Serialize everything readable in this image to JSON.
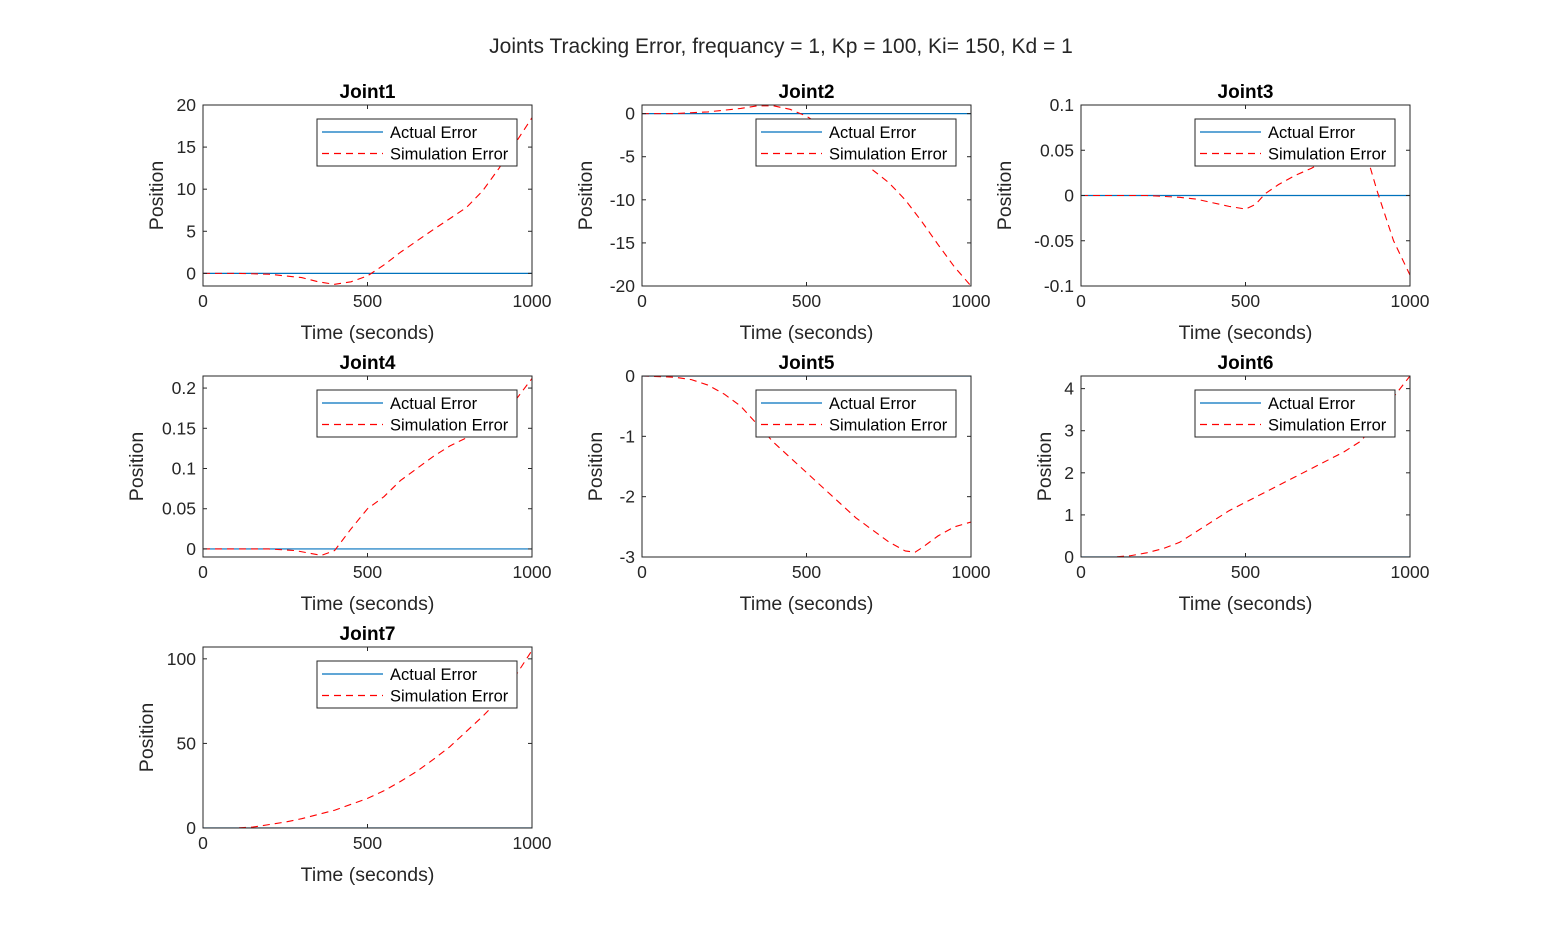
{
  "figure_title": "Joints Tracking Error, frequancy = 1, Kp = 100, Ki= 150, Kd = 1",
  "colors": {
    "actual": "#0072BD",
    "simulation": "#FF0000",
    "axis": "#262626"
  },
  "chart_data": [
    {
      "type": "line",
      "title": "Joint1",
      "xlabel": "Time (seconds)",
      "ylabel": "Position",
      "xlim": [
        0,
        1000
      ],
      "ylim": [
        -1.5,
        20
      ],
      "xticks": [
        0,
        500,
        1000
      ],
      "yticks": [
        0,
        5,
        10,
        15,
        20
      ],
      "xtick_labels": [
        "0",
        "500",
        "1000"
      ],
      "ytick_labels": [
        "0",
        "5",
        "10",
        "15",
        "20"
      ],
      "legend": "top-right",
      "grid": false,
      "series": [
        {
          "name": "Actual Error",
          "style": "solid",
          "x": [
            0,
            1000
          ],
          "y": [
            0,
            0
          ]
        },
        {
          "name": "Simulation Error",
          "style": "dashed",
          "x": [
            0,
            100,
            200,
            300,
            350,
            400,
            450,
            500,
            550,
            600,
            700,
            800,
            850,
            900,
            950,
            1000
          ],
          "y": [
            0,
            0,
            -0.1,
            -0.5,
            -1.0,
            -1.3,
            -1.0,
            -0.3,
            1.0,
            2.5,
            5.2,
            7.8,
            9.8,
            12.5,
            15.5,
            18.5
          ]
        }
      ]
    },
    {
      "type": "line",
      "title": "Joint2",
      "xlabel": "Time (seconds)",
      "ylabel": "Position",
      "xlim": [
        0,
        1000
      ],
      "ylim": [
        -20,
        1
      ],
      "xticks": [
        0,
        500,
        1000
      ],
      "yticks": [
        -20,
        -15,
        -10,
        -5,
        0
      ],
      "xtick_labels": [
        "0",
        "500",
        "1000"
      ],
      "ytick_labels": [
        "-20",
        "-15",
        "-10",
        "-5",
        "0"
      ],
      "legend": "top-right",
      "grid": false,
      "series": [
        {
          "name": "Actual Error",
          "style": "solid",
          "x": [
            0,
            1000
          ],
          "y": [
            0,
            0
          ]
        },
        {
          "name": "Simulation Error",
          "style": "dashed",
          "x": [
            0,
            100,
            200,
            300,
            350,
            400,
            450,
            500,
            550,
            600,
            650,
            700,
            750,
            800,
            850,
            900,
            950,
            1000
          ],
          "y": [
            0,
            0,
            0.2,
            0.6,
            0.9,
            0.9,
            0.5,
            -0.3,
            -1.5,
            -3.0,
            -4.5,
            -6.5,
            -8.0,
            -10.0,
            -12.5,
            -15.2,
            -17.8,
            -20.0
          ]
        }
      ]
    },
    {
      "type": "line",
      "title": "Joint3",
      "xlabel": "Time (seconds)",
      "ylabel": "Position",
      "xlim": [
        0,
        1000
      ],
      "ylim": [
        -0.1,
        0.1
      ],
      "xticks": [
        0,
        500,
        1000
      ],
      "yticks": [
        -0.1,
        -0.05,
        0,
        0.05,
        0.1
      ],
      "xtick_labels": [
        "0",
        "500",
        "1000"
      ],
      "ytick_labels": [
        "-0.1",
        "-0.05",
        "0",
        "0.05",
        "0.1"
      ],
      "legend": "top-right",
      "grid": false,
      "series": [
        {
          "name": "Actual Error",
          "style": "solid",
          "x": [
            0,
            1000
          ],
          "y": [
            0,
            0
          ]
        },
        {
          "name": "Simulation Error",
          "style": "dashed",
          "x": [
            0,
            100,
            200,
            300,
            350,
            400,
            450,
            500,
            530,
            560,
            600,
            650,
            700,
            750,
            800,
            850,
            880,
            900,
            950,
            1000
          ],
          "y": [
            0,
            0,
            0,
            -0.002,
            -0.004,
            -0.008,
            -0.012,
            -0.015,
            -0.01,
            0.002,
            0.012,
            0.022,
            0.03,
            0.04,
            0.046,
            0.044,
            0.03,
            0.005,
            -0.05,
            -0.088
          ]
        }
      ]
    },
    {
      "type": "line",
      "title": "Joint4",
      "xlabel": "Time (seconds)",
      "ylabel": "Position",
      "xlim": [
        0,
        1000
      ],
      "ylim": [
        -0.01,
        0.215
      ],
      "xticks": [
        0,
        500,
        1000
      ],
      "yticks": [
        0,
        0.05,
        0.1,
        0.15,
        0.2
      ],
      "xtick_labels": [
        "0",
        "500",
        "1000"
      ],
      "ytick_labels": [
        "0",
        "0.05",
        "0.1",
        "0.15",
        "0.2"
      ],
      "legend": "top-right",
      "grid": false,
      "series": [
        {
          "name": "Actual Error",
          "style": "solid",
          "x": [
            0,
            1000
          ],
          "y": [
            0,
            0
          ]
        },
        {
          "name": "Simulation Error",
          "style": "dashed",
          "x": [
            0,
            100,
            200,
            280,
            320,
            360,
            400,
            450,
            500,
            550,
            600,
            650,
            700,
            750,
            800,
            850,
            900,
            950,
            1000
          ],
          "y": [
            0,
            0,
            0,
            -0.002,
            -0.005,
            -0.008,
            -0.002,
            0.025,
            0.05,
            0.065,
            0.085,
            0.1,
            0.115,
            0.128,
            0.138,
            0.148,
            0.16,
            0.185,
            0.212
          ]
        }
      ]
    },
    {
      "type": "line",
      "title": "Joint5",
      "xlabel": "Time (seconds)",
      "ylabel": "Position",
      "xlim": [
        0,
        1000
      ],
      "ylim": [
        -3,
        0
      ],
      "xticks": [
        0,
        500,
        1000
      ],
      "yticks": [
        -3,
        -2,
        -1,
        0
      ],
      "xtick_labels": [
        "0",
        "500",
        "1000"
      ],
      "ytick_labels": [
        "-3",
        "-2",
        "-1",
        "0"
      ],
      "legend": "top-right",
      "grid": false,
      "series": [
        {
          "name": "Actual Error",
          "style": "solid",
          "x": [
            0,
            1000
          ],
          "y": [
            0,
            0
          ]
        },
        {
          "name": "Simulation Error",
          "style": "dashed",
          "x": [
            0,
            100,
            150,
            200,
            250,
            300,
            350,
            400,
            450,
            500,
            550,
            600,
            650,
            700,
            750,
            800,
            830,
            850,
            900,
            950,
            1000
          ],
          "y": [
            0,
            -0.02,
            -0.06,
            -0.15,
            -0.3,
            -0.5,
            -0.8,
            -1.1,
            -1.35,
            -1.6,
            -1.85,
            -2.1,
            -2.35,
            -2.55,
            -2.75,
            -2.9,
            -2.92,
            -2.85,
            -2.65,
            -2.5,
            -2.42
          ]
        }
      ]
    },
    {
      "type": "line",
      "title": "Joint6",
      "xlabel": "Time (seconds)",
      "ylabel": "Position",
      "xlim": [
        0,
        1000
      ],
      "ylim": [
        0,
        4.3
      ],
      "xticks": [
        0,
        500,
        1000
      ],
      "yticks": [
        0,
        1,
        2,
        3,
        4
      ],
      "xtick_labels": [
        "0",
        "500",
        "1000"
      ],
      "ytick_labels": [
        "0",
        "1",
        "2",
        "3",
        "4"
      ],
      "legend": "top-right",
      "grid": false,
      "series": [
        {
          "name": "Actual Error",
          "style": "solid",
          "x": [
            0,
            1000
          ],
          "y": [
            0,
            0
          ]
        },
        {
          "name": "Simulation Error",
          "style": "dashed",
          "x": [
            0,
            100,
            150,
            200,
            250,
            300,
            350,
            400,
            450,
            500,
            550,
            600,
            650,
            700,
            750,
            800,
            850,
            900,
            950,
            1000
          ],
          "y": [
            0,
            0,
            0.03,
            0.1,
            0.2,
            0.35,
            0.6,
            0.85,
            1.1,
            1.3,
            1.5,
            1.7,
            1.9,
            2.1,
            2.3,
            2.5,
            2.75,
            3.2,
            3.8,
            4.3
          ]
        }
      ]
    },
    {
      "type": "line",
      "title": "Joint7",
      "xlabel": "Time (seconds)",
      "ylabel": "Position",
      "xlim": [
        0,
        1000
      ],
      "ylim": [
        0,
        107
      ],
      "xticks": [
        0,
        500,
        1000
      ],
      "yticks": [
        0,
        50,
        100
      ],
      "xtick_labels": [
        "0",
        "500",
        "1000"
      ],
      "ytick_labels": [
        "0",
        "50",
        "100"
      ],
      "legend": "top-right",
      "grid": false,
      "series": [
        {
          "name": "Actual Error",
          "style": "solid",
          "x": [
            0,
            1000
          ],
          "y": [
            0,
            0
          ]
        },
        {
          "name": "Simulation Error",
          "style": "dashed",
          "x": [
            0,
            100,
            150,
            200,
            250,
            300,
            350,
            400,
            450,
            500,
            550,
            600,
            650,
            700,
            750,
            800,
            850,
            900,
            950,
            1000
          ],
          "y": [
            0,
            0,
            0.5,
            2,
            3.5,
            5.5,
            8,
            10.5,
            14,
            17.5,
            22,
            27.5,
            33.5,
            40.5,
            48,
            57,
            66,
            76,
            90,
            105
          ]
        }
      ]
    }
  ]
}
